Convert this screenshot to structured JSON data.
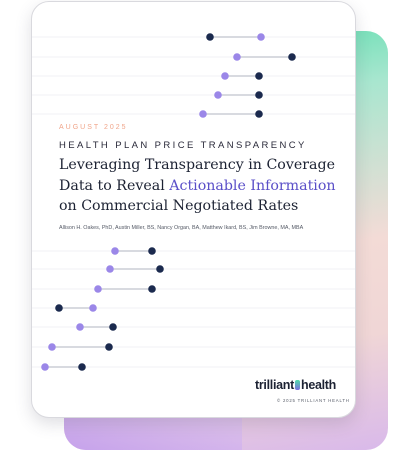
{
  "document": {
    "date": "AUGUST 2025",
    "kicker": "HEALTH PLAN PRICE TRANSPARENCY",
    "title_part1": "Leveraging Transparency in Coverage Data to Reveal ",
    "title_highlight": "Actionable Information",
    "title_part2": " on Commercial Negotiated Rates",
    "authors": "Allison H. Oakes, PhD, Austin Miller, BS, Nancy Organ, BA, Matthew Ikard, BS, Jim Browne, MA, MBA",
    "logo_left": "trilliant",
    "logo_right": "health",
    "logo_icon": "trilliant-mark-icon",
    "copyright": "© 2025 TRILLIANT HEALTH"
  },
  "colors": {
    "dark_dot": "#1b2a4e",
    "light_dot": "#9b87e8",
    "highlight": "#5a4fc8",
    "date": "#f0a58a",
    "gradient_green": "#4fdca8",
    "gradient_pink": "#f0d6d6",
    "gradient_purple": "#c4a0ec"
  }
}
